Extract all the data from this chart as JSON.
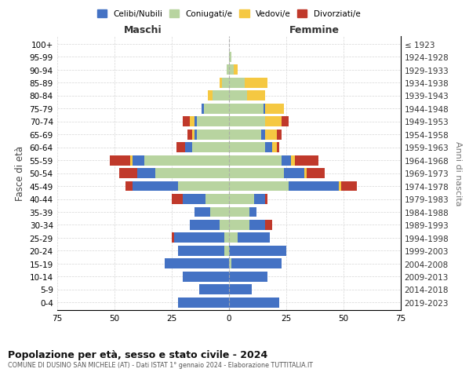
{
  "age_groups": [
    "0-4",
    "5-9",
    "10-14",
    "15-19",
    "20-24",
    "25-29",
    "30-34",
    "35-39",
    "40-44",
    "45-49",
    "50-54",
    "55-59",
    "60-64",
    "65-69",
    "70-74",
    "75-79",
    "80-84",
    "85-89",
    "90-94",
    "95-99",
    "100+"
  ],
  "birth_years": [
    "2019-2023",
    "2014-2018",
    "2009-2013",
    "2004-2008",
    "1999-2003",
    "1994-1998",
    "1989-1993",
    "1984-1988",
    "1979-1983",
    "1974-1978",
    "1969-1973",
    "1964-1968",
    "1959-1963",
    "1954-1958",
    "1949-1953",
    "1944-1948",
    "1939-1943",
    "1934-1938",
    "1929-1933",
    "1924-1928",
    "≤ 1923"
  ],
  "colors": {
    "celibe": "#4472C4",
    "coniugato": "#b8d4a0",
    "vedovo": "#f5c842",
    "divorziato": "#c0392b"
  },
  "maschi": {
    "celibe": [
      22,
      13,
      20,
      28,
      20,
      22,
      13,
      7,
      10,
      20,
      8,
      5,
      3,
      1,
      1,
      1,
      0,
      0,
      0,
      0,
      0
    ],
    "coniugato": [
      0,
      0,
      0,
      0,
      2,
      2,
      4,
      8,
      10,
      22,
      32,
      37,
      16,
      14,
      14,
      11,
      7,
      3,
      1,
      0,
      0
    ],
    "vedovo": [
      0,
      0,
      0,
      0,
      0,
      0,
      0,
      0,
      0,
      0,
      0,
      1,
      0,
      1,
      2,
      0,
      2,
      1,
      0,
      0,
      0
    ],
    "divorziato": [
      0,
      0,
      0,
      0,
      0,
      1,
      0,
      0,
      5,
      3,
      8,
      9,
      4,
      2,
      3,
      0,
      0,
      0,
      0,
      0,
      0
    ]
  },
  "femmine": {
    "nubile": [
      22,
      10,
      17,
      22,
      25,
      14,
      7,
      3,
      5,
      22,
      9,
      4,
      3,
      2,
      0,
      1,
      0,
      0,
      0,
      0,
      0
    ],
    "coniugata": [
      0,
      0,
      0,
      1,
      0,
      4,
      9,
      9,
      11,
      26,
      24,
      23,
      16,
      14,
      16,
      15,
      8,
      7,
      2,
      1,
      0
    ],
    "vedova": [
      0,
      0,
      0,
      0,
      0,
      0,
      0,
      0,
      0,
      1,
      1,
      2,
      2,
      5,
      7,
      8,
      8,
      10,
      2,
      0,
      0
    ],
    "divorziata": [
      0,
      0,
      0,
      0,
      0,
      0,
      3,
      0,
      1,
      7,
      8,
      10,
      1,
      2,
      3,
      0,
      0,
      0,
      0,
      0,
      0
    ]
  },
  "xlim": 75,
  "title": "Popolazione per età, sesso e stato civile - 2024",
  "subtitle": "COMUNE DI DUSINO SAN MICHELE (AT) - Dati ISTAT 1° gennaio 2024 - Elaborazione TUTTITALIA.IT",
  "xlabel_left": "Maschi",
  "xlabel_right": "Femmine",
  "ylabel_left": "Fasce di età",
  "ylabel_right": "Anni di nascita",
  "legend_labels": [
    "Celibi/Nubili",
    "Coniugati/e",
    "Vedovi/e",
    "Divorziati/e"
  ],
  "background_color": "#ffffff",
  "grid_color": "#cccccc"
}
